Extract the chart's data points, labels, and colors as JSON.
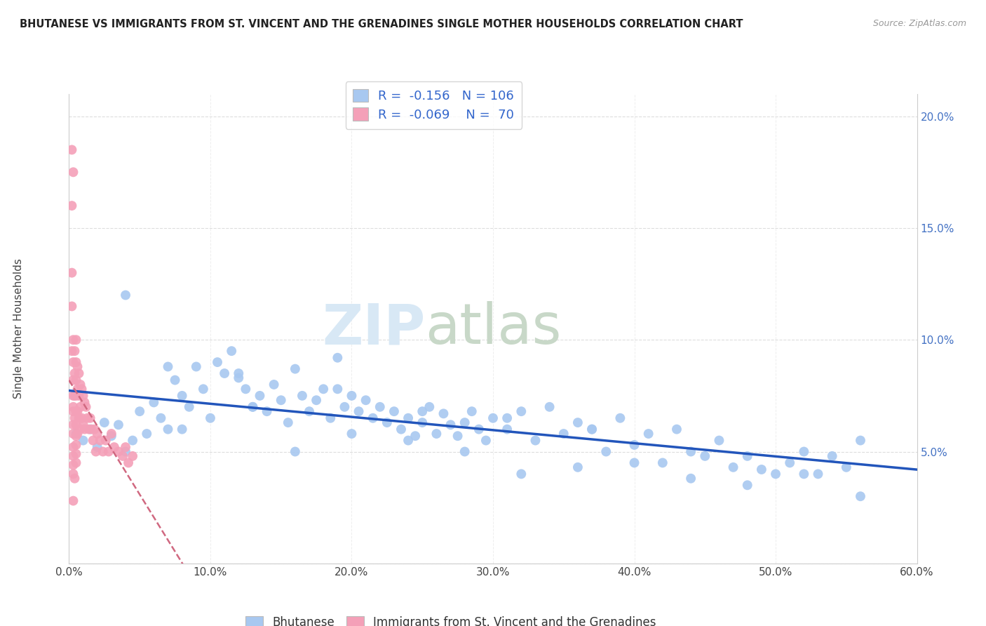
{
  "title": "BHUTANESE VS IMMIGRANTS FROM ST. VINCENT AND THE GRENADINES SINGLE MOTHER HOUSEHOLDS CORRELATION CHART",
  "source": "Source: ZipAtlas.com",
  "ylabel": "Single Mother Households",
  "xlim": [
    0.0,
    0.6
  ],
  "ylim": [
    0.0,
    0.21
  ],
  "yticks": [
    0.0,
    0.05,
    0.1,
    0.15,
    0.2
  ],
  "ytick_labels": [
    "",
    "5.0%",
    "10.0%",
    "15.0%",
    "20.0%"
  ],
  "xticks": [
    0.0,
    0.1,
    0.2,
    0.3,
    0.4,
    0.5,
    0.6
  ],
  "xtick_labels": [
    "0.0%",
    "10.0%",
    "20.0%",
    "30.0%",
    "40.0%",
    "50.0%",
    "60.0%"
  ],
  "blue_R": -0.156,
  "blue_N": 106,
  "pink_R": -0.069,
  "pink_N": 70,
  "blue_color": "#a8c8f0",
  "pink_color": "#f4a0b8",
  "blue_line_color": "#2255bb",
  "pink_line_color": "#d06880",
  "watermark_zip": "ZIP",
  "watermark_atlas": "atlas",
  "legend_label_blue": "Bhutanese",
  "legend_label_pink": "Immigrants from St. Vincent and the Grenadines",
  "blue_scatter_x": [
    0.005,
    0.01,
    0.015,
    0.02,
    0.025,
    0.03,
    0.035,
    0.04,
    0.045,
    0.05,
    0.055,
    0.06,
    0.065,
    0.07,
    0.075,
    0.08,
    0.085,
    0.09,
    0.095,
    0.1,
    0.105,
    0.11,
    0.115,
    0.12,
    0.125,
    0.13,
    0.135,
    0.14,
    0.145,
    0.15,
    0.155,
    0.16,
    0.165,
    0.17,
    0.175,
    0.18,
    0.185,
    0.19,
    0.195,
    0.2,
    0.205,
    0.21,
    0.215,
    0.22,
    0.225,
    0.23,
    0.235,
    0.24,
    0.245,
    0.25,
    0.255,
    0.26,
    0.265,
    0.27,
    0.275,
    0.28,
    0.285,
    0.29,
    0.295,
    0.3,
    0.31,
    0.32,
    0.33,
    0.34,
    0.35,
    0.36,
    0.37,
    0.38,
    0.39,
    0.4,
    0.41,
    0.42,
    0.43,
    0.44,
    0.45,
    0.46,
    0.47,
    0.48,
    0.49,
    0.5,
    0.51,
    0.52,
    0.53,
    0.54,
    0.55,
    0.56,
    0.04,
    0.08,
    0.12,
    0.16,
    0.2,
    0.24,
    0.28,
    0.32,
    0.36,
    0.4,
    0.44,
    0.48,
    0.52,
    0.56,
    0.07,
    0.13,
    0.19,
    0.25,
    0.31,
    0.37
  ],
  "blue_scatter_y": [
    0.058,
    0.055,
    0.06,
    0.052,
    0.063,
    0.057,
    0.062,
    0.05,
    0.055,
    0.068,
    0.058,
    0.072,
    0.065,
    0.06,
    0.082,
    0.075,
    0.07,
    0.088,
    0.078,
    0.065,
    0.09,
    0.085,
    0.095,
    0.083,
    0.078,
    0.07,
    0.075,
    0.068,
    0.08,
    0.073,
    0.063,
    0.087,
    0.075,
    0.068,
    0.073,
    0.078,
    0.065,
    0.092,
    0.07,
    0.075,
    0.068,
    0.073,
    0.065,
    0.07,
    0.063,
    0.068,
    0.06,
    0.065,
    0.057,
    0.063,
    0.07,
    0.058,
    0.067,
    0.062,
    0.057,
    0.063,
    0.068,
    0.06,
    0.055,
    0.065,
    0.06,
    0.068,
    0.055,
    0.07,
    0.058,
    0.063,
    0.06,
    0.05,
    0.065,
    0.053,
    0.058,
    0.045,
    0.06,
    0.05,
    0.048,
    0.055,
    0.043,
    0.048,
    0.042,
    0.04,
    0.045,
    0.05,
    0.04,
    0.048,
    0.043,
    0.055,
    0.12,
    0.06,
    0.085,
    0.05,
    0.058,
    0.055,
    0.05,
    0.04,
    0.043,
    0.045,
    0.038,
    0.035,
    0.04,
    0.03,
    0.088,
    0.07,
    0.078,
    0.068,
    0.065,
    0.06
  ],
  "pink_scatter_x": [
    0.002,
    0.002,
    0.002,
    0.002,
    0.002,
    0.003,
    0.003,
    0.003,
    0.003,
    0.003,
    0.003,
    0.003,
    0.003,
    0.003,
    0.003,
    0.003,
    0.004,
    0.004,
    0.004,
    0.004,
    0.005,
    0.005,
    0.005,
    0.005,
    0.005,
    0.005,
    0.005,
    0.005,
    0.005,
    0.005,
    0.006,
    0.006,
    0.006,
    0.006,
    0.007,
    0.007,
    0.007,
    0.008,
    0.008,
    0.008,
    0.009,
    0.009,
    0.01,
    0.01,
    0.011,
    0.011,
    0.012,
    0.013,
    0.014,
    0.015,
    0.016,
    0.017,
    0.018,
    0.019,
    0.02,
    0.022,
    0.024,
    0.026,
    0.028,
    0.03,
    0.032,
    0.035,
    0.038,
    0.04,
    0.042,
    0.045,
    0.003,
    0.003,
    0.003,
    0.004
  ],
  "pink_scatter_y": [
    0.185,
    0.16,
    0.13,
    0.115,
    0.095,
    0.175,
    0.1,
    0.09,
    0.082,
    0.075,
    0.068,
    0.062,
    0.058,
    0.052,
    0.048,
    0.044,
    0.095,
    0.085,
    0.075,
    0.065,
    0.1,
    0.09,
    0.082,
    0.075,
    0.068,
    0.062,
    0.057,
    0.053,
    0.049,
    0.045,
    0.088,
    0.078,
    0.068,
    0.058,
    0.085,
    0.075,
    0.065,
    0.08,
    0.07,
    0.06,
    0.078,
    0.065,
    0.075,
    0.062,
    0.072,
    0.06,
    0.07,
    0.065,
    0.06,
    0.065,
    0.06,
    0.055,
    0.06,
    0.05,
    0.058,
    0.055,
    0.05,
    0.055,
    0.05,
    0.058,
    0.052,
    0.05,
    0.048,
    0.052,
    0.045,
    0.048,
    0.028,
    0.04,
    0.07,
    0.038
  ]
}
